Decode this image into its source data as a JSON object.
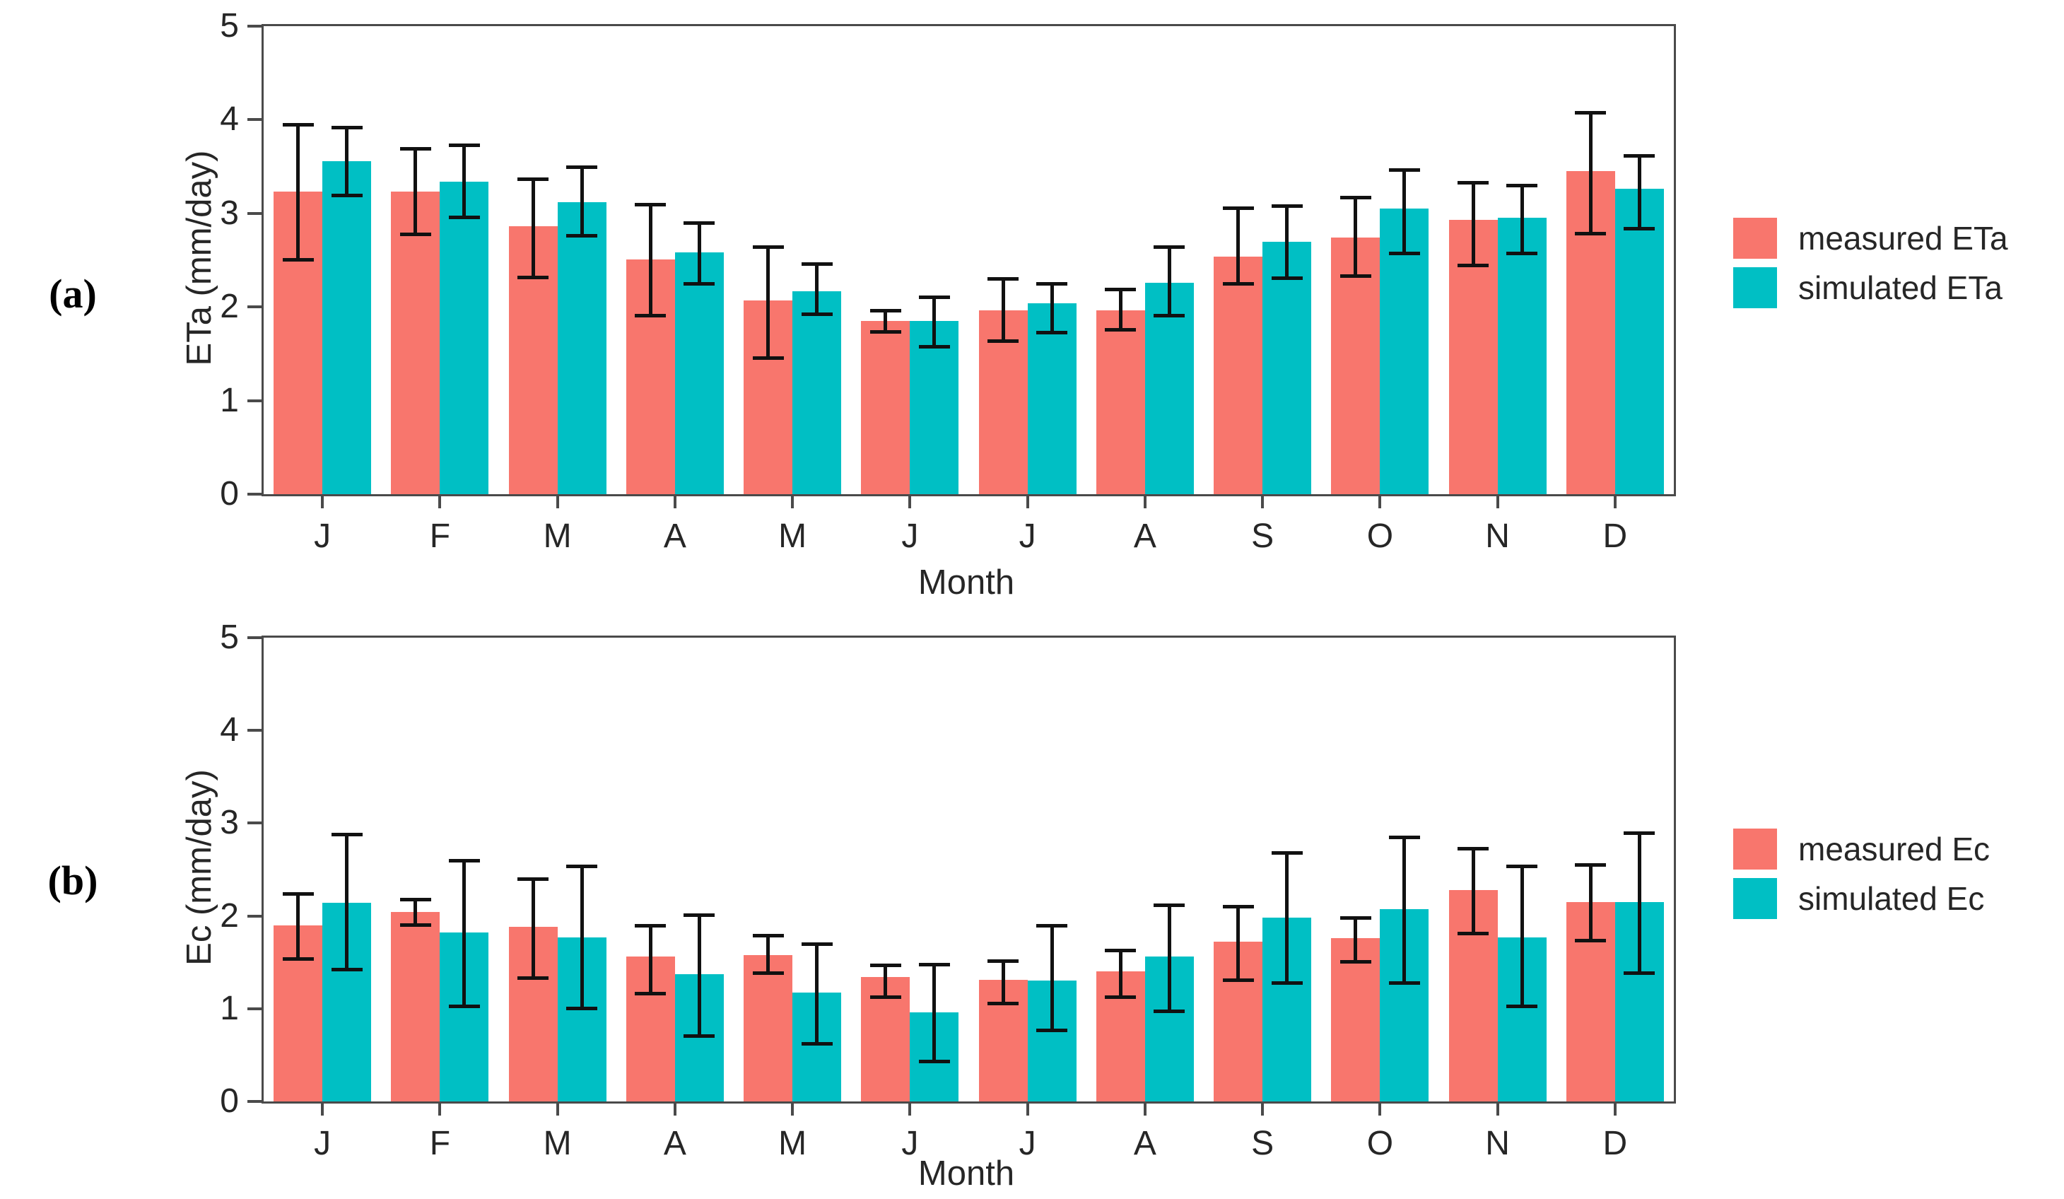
{
  "figure": {
    "panels": [
      {
        "label": "(a)",
        "y_axis_label": "ETa (mm/day)",
        "x_axis_label": "Month"
      },
      {
        "label": "(b)",
        "y_axis_label": "Ec (mm/day)",
        "x_axis_label": "Month"
      }
    ],
    "colors": {
      "measured": "#F8766D",
      "simulated": "#00BFC4",
      "error_bar": "#111111",
      "axis": "#4a4a4a"
    }
  },
  "chart_data": [
    {
      "type": "bar",
      "panel": "a",
      "title": "",
      "categories": [
        "J",
        "F",
        "M",
        "A",
        "M",
        "J",
        "J",
        "A",
        "S",
        "O",
        "N",
        "D"
      ],
      "xlabel": "Month",
      "ylabel": "ETa (mm/day)",
      "ylim": [
        0,
        5
      ],
      "yticks": [
        0,
        1,
        2,
        3,
        4,
        5
      ],
      "grid": false,
      "legend_position": "right",
      "series": [
        {
          "name": "measured ETa",
          "color": "#F8766D",
          "values": [
            3.23,
            3.23,
            2.86,
            2.51,
            2.07,
            1.85,
            1.96,
            1.96,
            2.54,
            2.74,
            2.93,
            3.45
          ],
          "err_low": [
            2.5,
            2.77,
            2.31,
            1.9,
            1.45,
            1.73,
            1.63,
            1.75,
            2.24,
            2.33,
            2.44,
            2.78
          ],
          "err_high": [
            3.95,
            3.69,
            3.37,
            3.1,
            2.64,
            1.96,
            2.3,
            2.19,
            3.06,
            3.17,
            3.33,
            4.08
          ]
        },
        {
          "name": "simulated ETa",
          "color": "#00BFC4",
          "values": [
            3.56,
            3.34,
            3.12,
            2.58,
            2.17,
            1.85,
            2.04,
            2.26,
            2.7,
            3.05,
            2.95,
            3.26
          ],
          "err_low": [
            3.19,
            2.95,
            2.76,
            2.24,
            1.92,
            1.57,
            1.72,
            1.9,
            2.3,
            2.57,
            2.57,
            2.83
          ],
          "err_high": [
            3.92,
            3.73,
            3.5,
            2.9,
            2.46,
            2.11,
            2.25,
            2.64,
            3.08,
            3.47,
            3.3,
            3.62
          ]
        }
      ]
    },
    {
      "type": "bar",
      "panel": "b",
      "title": "",
      "categories": [
        "J",
        "F",
        "M",
        "A",
        "M",
        "J",
        "J",
        "A",
        "S",
        "O",
        "N",
        "D"
      ],
      "xlabel": "Month",
      "ylabel": "Ec (mm/day)",
      "ylim": [
        0,
        5
      ],
      "yticks": [
        0,
        1,
        2,
        3,
        4,
        5
      ],
      "grid": false,
      "legend_position": "right",
      "series": [
        {
          "name": "measured Ec",
          "color": "#F8766D",
          "values": [
            1.9,
            2.04,
            1.88,
            1.56,
            1.58,
            1.34,
            1.31,
            1.4,
            1.72,
            1.76,
            2.28,
            2.15
          ],
          "err_low": [
            1.53,
            1.9,
            1.33,
            1.16,
            1.38,
            1.12,
            1.05,
            1.12,
            1.3,
            1.5,
            1.81,
            1.73
          ],
          "err_high": [
            2.24,
            2.18,
            2.4,
            1.9,
            1.79,
            1.47,
            1.52,
            1.63,
            2.1,
            1.98,
            2.73,
            2.55
          ]
        },
        {
          "name": "simulated Ec",
          "color": "#00BFC4",
          "values": [
            2.14,
            1.82,
            1.77,
            1.37,
            1.17,
            0.96,
            1.3,
            1.56,
            1.98,
            2.07,
            1.77,
            2.15
          ],
          "err_low": [
            1.42,
            1.02,
            1.0,
            0.7,
            0.62,
            0.43,
            0.76,
            0.97,
            1.27,
            1.27,
            1.02,
            1.38
          ],
          "err_high": [
            2.88,
            2.6,
            2.54,
            2.01,
            1.7,
            1.48,
            1.9,
            2.12,
            2.68,
            2.85,
            2.54,
            2.9
          ]
        }
      ]
    }
  ]
}
